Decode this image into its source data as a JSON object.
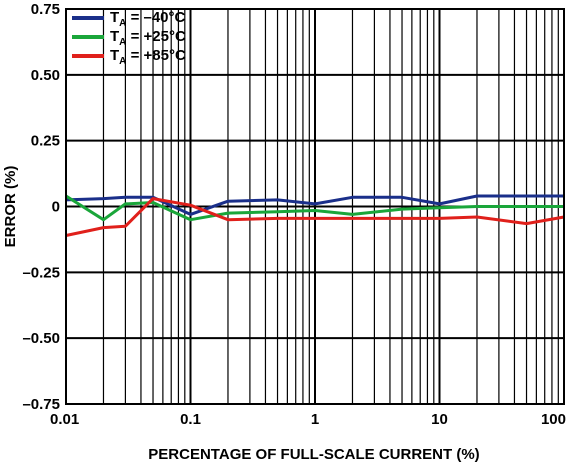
{
  "chart_data": {
    "type": "line",
    "title": "",
    "xlabel": "PERCENTAGE OF FULL-SCALE CURRENT (%)",
    "ylabel": "ERROR (%)",
    "x_scale": "log",
    "xlim": [
      0.01,
      100
    ],
    "ylim": [
      -0.75,
      0.75
    ],
    "x_ticks": [
      0.01,
      0.1,
      1,
      10,
      100
    ],
    "x_tick_labels": [
      "0.01",
      "0.1",
      "1",
      "10",
      "100"
    ],
    "y_ticks": [
      0.75,
      0.5,
      0.25,
      0,
      -0.25,
      -0.5,
      -0.75
    ],
    "y_tick_labels": [
      "0.75",
      "0.50",
      "0.25",
      "0",
      "–0.25",
      "–0.50",
      "–0.75"
    ],
    "grid": "vertical",
    "legend_position": "top-left",
    "series": [
      {
        "name": "T_A = –40°C",
        "legend_main": "T",
        "legend_sub": "A",
        "legend_rest": " = –40°C",
        "color": "#1a2f8a",
        "x": [
          0.01,
          0.02,
          0.03,
          0.05,
          0.1,
          0.2,
          0.5,
          1,
          2,
          5,
          10,
          20,
          50,
          100
        ],
        "y": [
          0.025,
          0.03,
          0.035,
          0.035,
          -0.03,
          0.02,
          0.025,
          0.01,
          0.035,
          0.035,
          0.01,
          0.04,
          0.04,
          0.04
        ]
      },
      {
        "name": "T_A = +25°C",
        "legend_main": "T",
        "legend_sub": "A",
        "legend_rest": " = +25°C",
        "color": "#1aa63a",
        "x": [
          0.01,
          0.02,
          0.03,
          0.05,
          0.1,
          0.2,
          0.5,
          1,
          2,
          5,
          10,
          20,
          50,
          100
        ],
        "y": [
          0.04,
          -0.05,
          0.01,
          0.015,
          -0.05,
          -0.025,
          -0.02,
          -0.015,
          -0.03,
          -0.01,
          -0.005,
          0.0,
          0.0,
          0.0
        ]
      },
      {
        "name": "T_A = +85°C",
        "legend_main": "T",
        "legend_sub": "A",
        "legend_rest": " = +85°C",
        "color": "#e0201b",
        "x": [
          0.01,
          0.02,
          0.03,
          0.05,
          0.1,
          0.2,
          0.5,
          1,
          2,
          5,
          10,
          20,
          50,
          100
        ],
        "y": [
          -0.11,
          -0.08,
          -0.075,
          0.03,
          0.005,
          -0.05,
          -0.045,
          -0.045,
          -0.045,
          -0.045,
          -0.045,
          -0.04,
          -0.065,
          -0.04
        ]
      }
    ]
  }
}
